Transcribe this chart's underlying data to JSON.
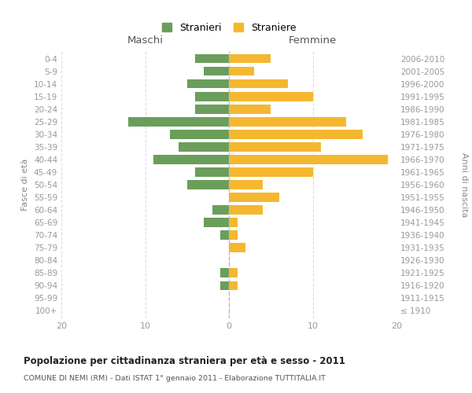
{
  "age_groups": [
    "100+",
    "95-99",
    "90-94",
    "85-89",
    "80-84",
    "75-79",
    "70-74",
    "65-69",
    "60-64",
    "55-59",
    "50-54",
    "45-49",
    "40-44",
    "35-39",
    "30-34",
    "25-29",
    "20-24",
    "15-19",
    "10-14",
    "5-9",
    "0-4"
  ],
  "birth_years": [
    "≤ 1910",
    "1911-1915",
    "1916-1920",
    "1921-1925",
    "1926-1930",
    "1931-1935",
    "1936-1940",
    "1941-1945",
    "1946-1950",
    "1951-1955",
    "1956-1960",
    "1961-1965",
    "1966-1970",
    "1971-1975",
    "1976-1980",
    "1981-1985",
    "1986-1990",
    "1991-1995",
    "1996-2000",
    "2001-2005",
    "2006-2010"
  ],
  "maschi": [
    0,
    0,
    1,
    1,
    0,
    0,
    1,
    3,
    2,
    0,
    5,
    4,
    9,
    6,
    7,
    12,
    4,
    4,
    5,
    3,
    4
  ],
  "femmine": [
    0,
    0,
    1,
    1,
    0,
    2,
    1,
    1,
    4,
    6,
    4,
    10,
    19,
    11,
    16,
    14,
    5,
    10,
    7,
    3,
    5
  ],
  "maschi_color": "#6a9e5a",
  "femmine_color": "#f5b730",
  "title": "Popolazione per cittadinanza straniera per età e sesso - 2011",
  "subtitle": "COMUNE DI NEMI (RM) - Dati ISTAT 1° gennaio 2011 - Elaborazione TUTTITALIA.IT",
  "label_maschi_top": "Maschi",
  "label_femmine_top": "Femmine",
  "ylabel_left": "Fasce di età",
  "ylabel_right": "Anni di nascita",
  "legend_maschi": "Stranieri",
  "legend_femmine": "Straniere",
  "xlim": 20,
  "background_color": "#ffffff",
  "grid_color": "#dddddd"
}
